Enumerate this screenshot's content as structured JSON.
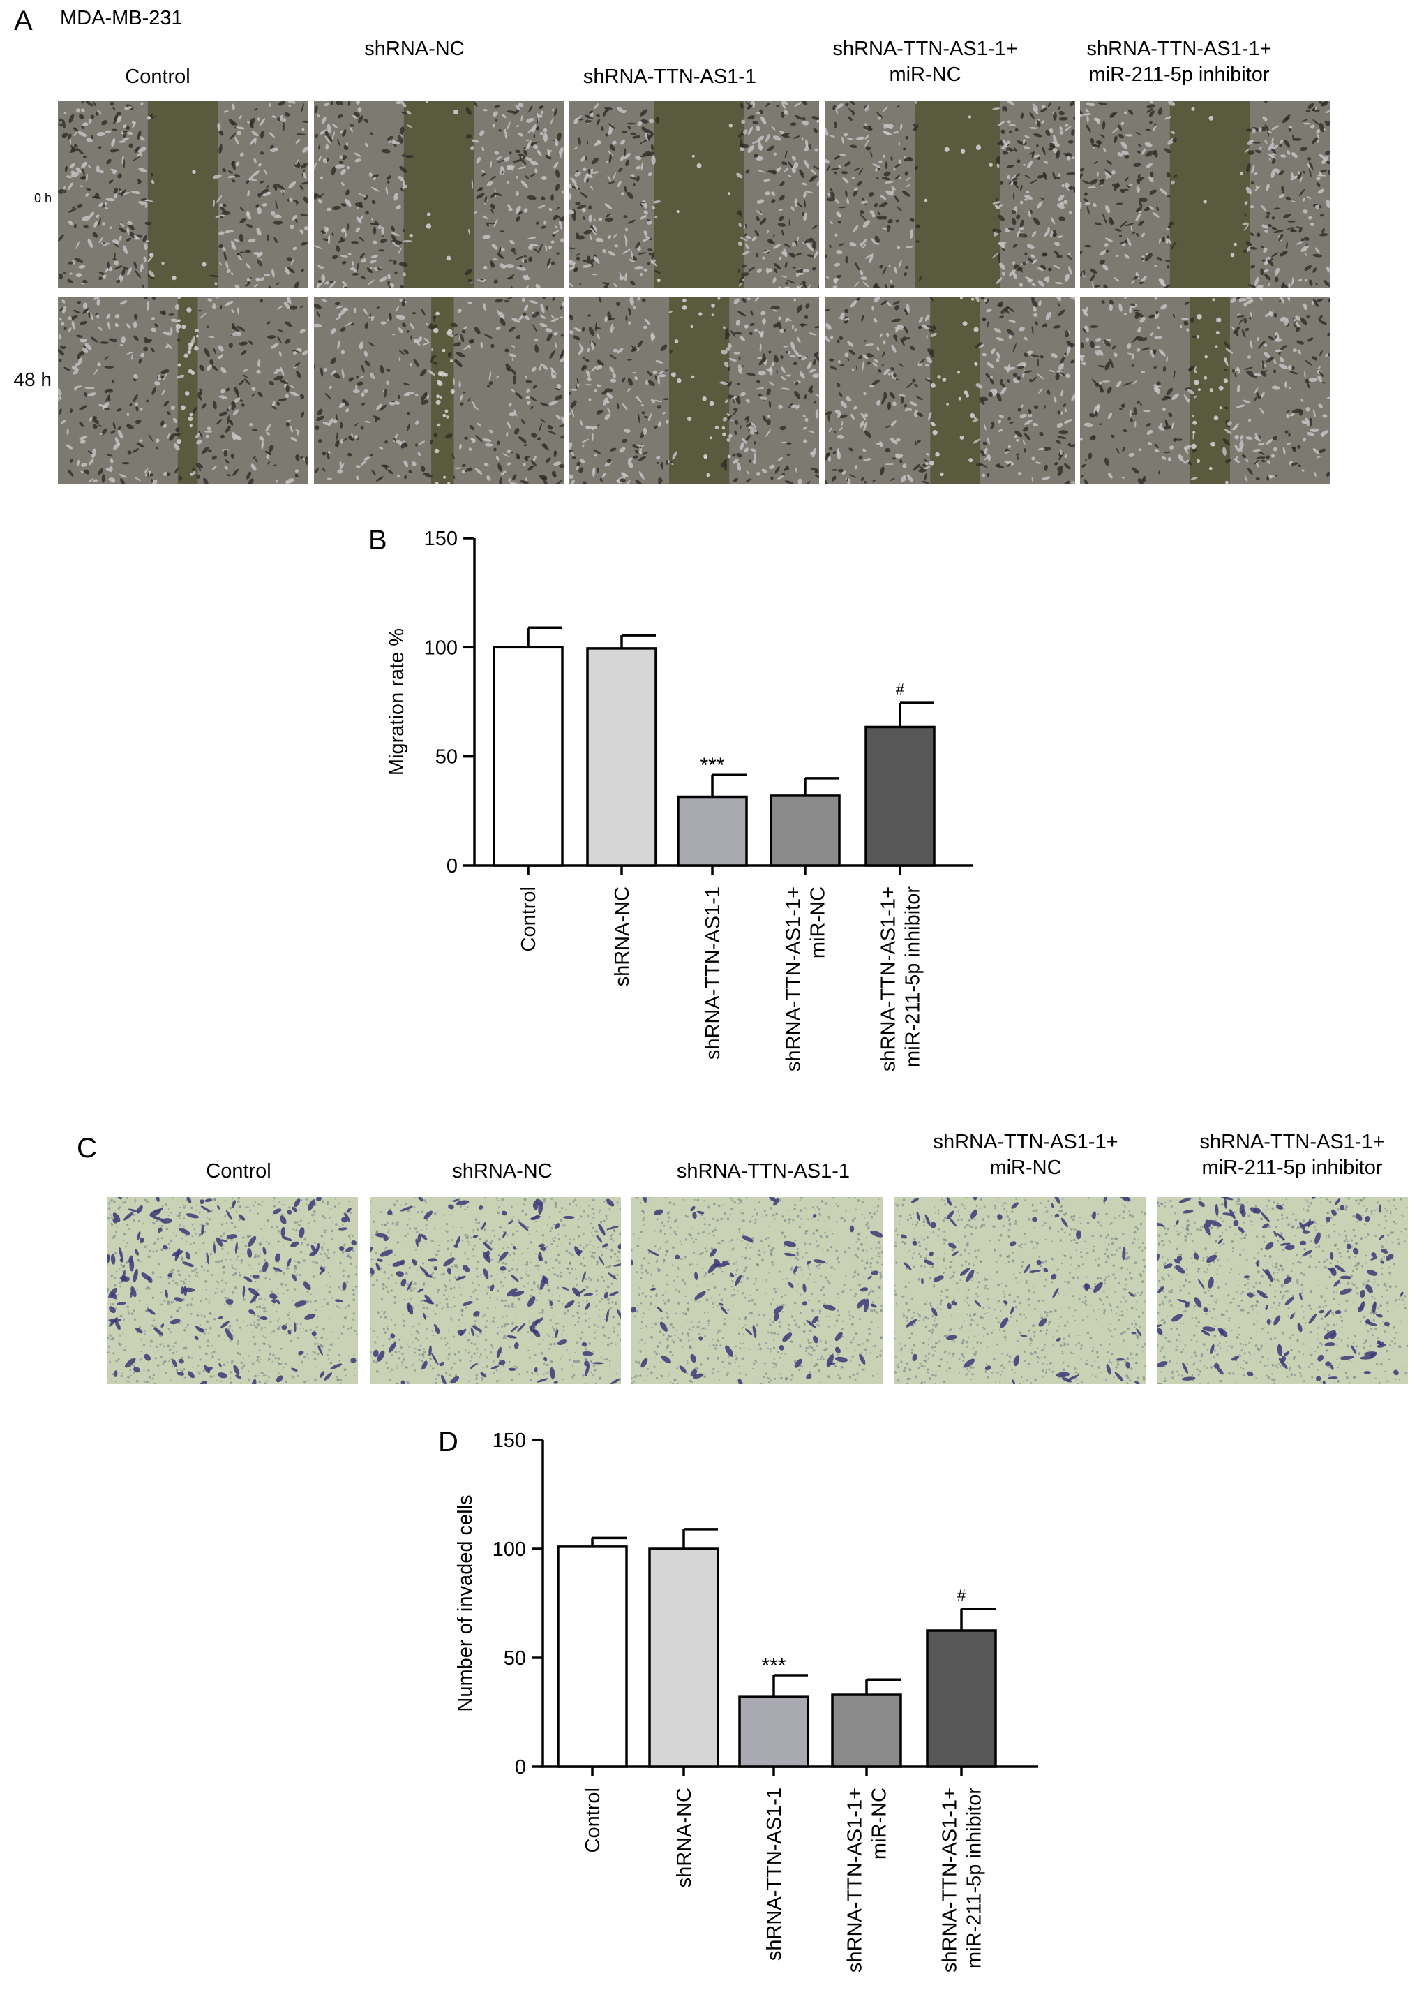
{
  "panelA": {
    "letter": "A",
    "cell_line": "MDA-MB-231",
    "columns": [
      "Control",
      "shRNA-NC",
      "shRNA-TTN-AS1-1",
      "shRNA-TTN-AS1-1+\nmiR-NC",
      "shRNA-TTN-AS1-1+\nmiR-211-5p inhibitor"
    ],
    "rows": [
      "0 h",
      "48 h"
    ]
  },
  "panelC": {
    "letter": "C",
    "columns": [
      "Control",
      "shRNA-NC",
      "shRNA-TTN-AS1-1",
      "shRNA-TTN-AS1-1+\nmiR-NC",
      "shRNA-TTN-AS1-1+\nmiR-211-5p inhibitor"
    ]
  },
  "chart_data": [
    {
      "letter": "B",
      "type": "bar",
      "ylabel": "Migration rate %",
      "ylim": [
        0,
        150
      ],
      "yticks": [
        0,
        50,
        100,
        150
      ],
      "categories": [
        "Control",
        "shRNA-NC",
        "shRNA-TTN-AS1-1",
        "shRNA-TTN-AS1-1+\nmiR-NC",
        "shRNA-TTN-AS1-1+\nmiR-211-5p inhibitor"
      ],
      "values": [
        100,
        99.5,
        31.5,
        32,
        63.5
      ],
      "errors": [
        9,
        6,
        10,
        8,
        11
      ],
      "annotations": [
        "",
        "",
        "***",
        "",
        "#"
      ],
      "bar_colors": [
        "#ffffff",
        "#d6d6d6",
        "#a9a9b1",
        "#8a8a8a",
        "#575757"
      ]
    },
    {
      "letter": "D",
      "type": "bar",
      "ylabel": "Number of invaded cells",
      "ylim": [
        0,
        150
      ],
      "yticks": [
        0,
        50,
        100,
        150
      ],
      "categories": [
        "Control",
        "shRNA-NC",
        "shRNA-TTN-AS1-1",
        "shRNA-TTN-AS1-1+\nmiR-NC",
        "shRNA-TTN-AS1-1+\nmiR-211-5p inhibitor"
      ],
      "values": [
        101,
        100,
        32,
        33,
        62.5
      ],
      "errors": [
        4,
        9,
        10,
        7,
        10
      ],
      "annotations": [
        "",
        "",
        "***",
        "",
        "#"
      ],
      "bar_colors": [
        "#ffffff",
        "#d6d6d6",
        "#a9a9b1",
        "#8a8a8a",
        "#575757"
      ]
    }
  ]
}
